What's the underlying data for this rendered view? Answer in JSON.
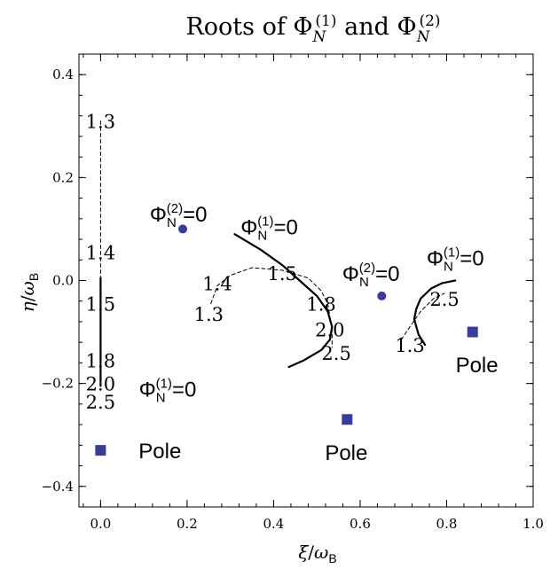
{
  "chart_data": {
    "type": "scatter",
    "title": {
      "prefix": "Roots of ",
      "a_sym": "Φ",
      "a_sub": "N",
      "a_sup": "(1)",
      "mid": " and ",
      "b_sym": "Φ",
      "b_sub": "N",
      "b_sup": "(2)"
    },
    "xlabel": {
      "sym": "ξ",
      "slash": "/",
      "denom": "ω",
      "denom_sub": "B"
    },
    "ylabel": {
      "sym": "η",
      "slash": "/",
      "denom": "ω",
      "denom_sub": "B"
    },
    "xlim": [
      -0.05,
      1.0
    ],
    "ylim": [
      -0.44,
      0.44
    ],
    "xticks": [
      {
        "value": 0.0,
        "label": "0.0"
      },
      {
        "value": 0.2,
        "label": "0.2"
      },
      {
        "value": 0.4,
        "label": "0.4"
      },
      {
        "value": 0.6,
        "label": "0.6"
      },
      {
        "value": 0.8,
        "label": "0.8"
      },
      {
        "value": 1.0,
        "label": "1.0"
      }
    ],
    "yticks": [
      {
        "value": 0.4,
        "label": "0.4"
      },
      {
        "value": 0.2,
        "label": "0.2"
      },
      {
        "value": 0.0,
        "label": "0.0"
      },
      {
        "value": -0.2,
        "label": "−0.2"
      },
      {
        "value": -0.4,
        "label": "−0.4"
      }
    ],
    "grid": false,
    "series": [
      {
        "style": "solid",
        "points": [
          [
            0.0,
            0.005
          ],
          [
            0.0,
            -0.05
          ],
          [
            0.0,
            -0.1
          ],
          [
            0.0,
            -0.15
          ],
          [
            0.0,
            -0.205
          ]
        ]
      },
      {
        "style": "dashed",
        "points": [
          [
            0.0,
            0.31
          ],
          [
            0.0,
            0.25
          ],
          [
            0.0,
            0.18
          ],
          [
            0.0,
            0.1
          ],
          [
            0.0,
            0.05
          ],
          [
            0.0,
            0.005
          ]
        ]
      },
      {
        "style": "solid",
        "points": [
          [
            0.31,
            0.09
          ],
          [
            0.37,
            0.06
          ],
          [
            0.42,
            0.03
          ],
          [
            0.46,
            0.0
          ],
          [
            0.5,
            -0.03
          ],
          [
            0.525,
            -0.06
          ],
          [
            0.535,
            -0.09
          ],
          [
            0.53,
            -0.115
          ],
          [
            0.51,
            -0.135
          ],
          [
            0.47,
            -0.155
          ],
          [
            0.435,
            -0.168
          ]
        ]
      },
      {
        "style": "dashed",
        "points": [
          [
            0.255,
            -0.045
          ],
          [
            0.27,
            -0.01
          ],
          [
            0.3,
            0.01
          ],
          [
            0.35,
            0.025
          ],
          [
            0.42,
            0.02
          ],
          [
            0.48,
            0.005
          ],
          [
            0.51,
            -0.02
          ],
          [
            0.525,
            -0.045
          ],
          [
            0.53,
            -0.07
          ],
          [
            0.535,
            -0.095
          ],
          [
            0.535,
            -0.13
          ]
        ]
      },
      {
        "style": "solid",
        "points": [
          [
            0.82,
            0.0
          ],
          [
            0.79,
            -0.005
          ],
          [
            0.765,
            -0.015
          ],
          [
            0.74,
            -0.035
          ],
          [
            0.73,
            -0.055
          ],
          [
            0.725,
            -0.075
          ],
          [
            0.735,
            -0.105
          ],
          [
            0.75,
            -0.125
          ]
        ]
      },
      {
        "style": "dashed",
        "points": [
          [
            0.695,
            -0.115
          ],
          [
            0.715,
            -0.09
          ],
          [
            0.74,
            -0.06
          ],
          [
            0.77,
            -0.035
          ],
          [
            0.795,
            -0.025
          ]
        ]
      }
    ],
    "points": {
      "circles": [
        {
          "x": 0.19,
          "y": 0.1,
          "color": "#3b3b99"
        },
        {
          "x": 0.65,
          "y": -0.03,
          "color": "#3b3b99"
        }
      ],
      "squares": [
        {
          "x": 0.0,
          "y": -0.33,
          "color": "#3b3b99"
        },
        {
          "x": 0.57,
          "y": -0.27,
          "color": "#3b3b99"
        },
        {
          "x": 0.86,
          "y": -0.1,
          "color": "#3b3b99"
        }
      ]
    },
    "annotations": {
      "serif_labels": [
        {
          "x": 0.0,
          "y": 0.31,
          "text": "1.3"
        },
        {
          "x": 0.0,
          "y": 0.055,
          "text": "1.4"
        },
        {
          "x": 0.0,
          "y": -0.045,
          "text": "1.5"
        },
        {
          "x": 0.0,
          "y": -0.155,
          "text": "1.8"
        },
        {
          "x": 0.0,
          "y": -0.2,
          "text": "2.0"
        },
        {
          "x": 0.0,
          "y": -0.235,
          "text": "2.5"
        },
        {
          "x": 0.27,
          "y": -0.005,
          "text": "1.4"
        },
        {
          "x": 0.42,
          "y": 0.015,
          "text": "1.5"
        },
        {
          "x": 0.25,
          "y": -0.065,
          "text": "1.3"
        },
        {
          "x": 0.51,
          "y": -0.045,
          "text": "1.8"
        },
        {
          "x": 0.53,
          "y": -0.095,
          "text": "2.0"
        },
        {
          "x": 0.545,
          "y": -0.14,
          "text": "2.5"
        },
        {
          "x": 0.795,
          "y": -0.035,
          "text": "2.5"
        },
        {
          "x": 0.715,
          "y": -0.125,
          "text": "1.3"
        }
      ],
      "phi_labels": [
        {
          "x": 0.18,
          "y": 0.13,
          "sup": "(2)",
          "text": "=0"
        },
        {
          "x": 0.39,
          "y": 0.105,
          "sup": "(1)",
          "text": "=0"
        },
        {
          "x": 0.625,
          "y": 0.015,
          "sup": "(2)",
          "text": "=0"
        },
        {
          "x": 0.82,
          "y": 0.045,
          "sup": "(1)",
          "text": "=0"
        },
        {
          "x": 0.155,
          "y": -0.21,
          "sup": "(1)",
          "text": "=0"
        }
      ],
      "phi_sym": "Φ",
      "phi_sub": "N",
      "pole_labels": [
        {
          "x": 0.088,
          "y": -0.33,
          "text": "Pole"
        },
        {
          "x": 0.568,
          "y": -0.333,
          "text": "Pole"
        },
        {
          "x": 0.87,
          "y": -0.163,
          "text": "Pole"
        }
      ]
    }
  }
}
